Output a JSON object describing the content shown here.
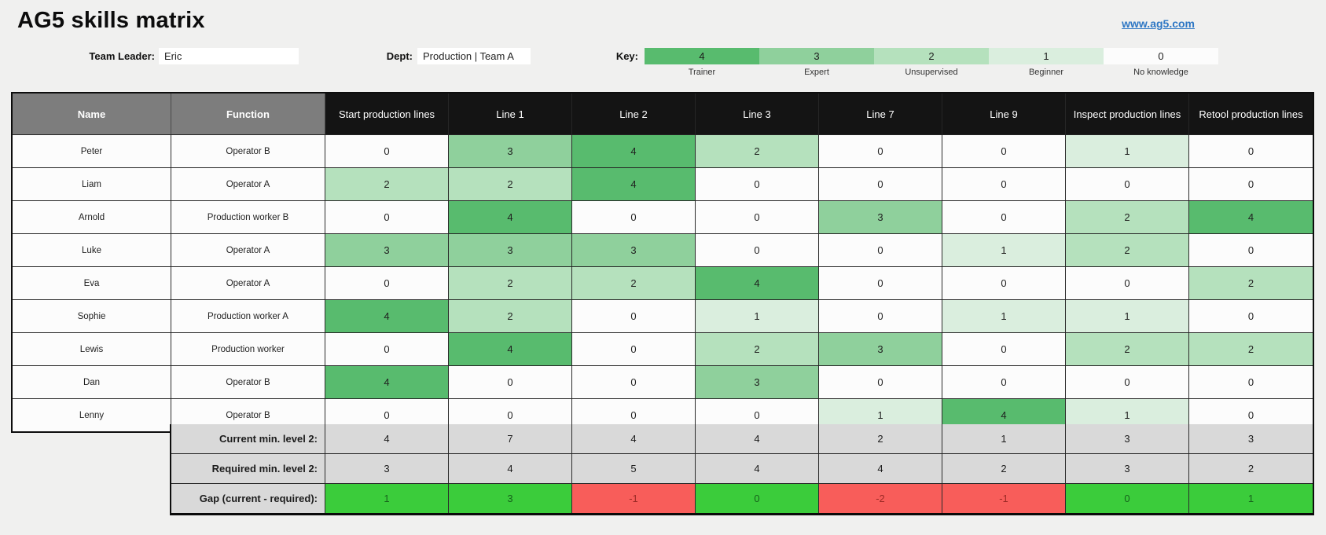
{
  "page": {
    "title": "AG5 skills matrix",
    "link": "www.ag5.com"
  },
  "form": {
    "team_leader_label": "Team Leader:",
    "team_leader_value": "Eric",
    "dept_label": "Dept:",
    "dept_value": "Production | Team A"
  },
  "key": {
    "label": "Key:",
    "levels": [
      {
        "value": "4",
        "name": "Trainer"
      },
      {
        "value": "3",
        "name": "Expert"
      },
      {
        "value": "2",
        "name": "Unsupervised"
      },
      {
        "value": "1",
        "name": "Beginner"
      },
      {
        "value": "0",
        "name": "No knowledge"
      }
    ]
  },
  "table": {
    "name_header": "Name",
    "function_header": "Function",
    "skill_headers": [
      "Start production lines",
      "Line 1",
      "Line 2",
      "Line 3",
      "Line 7",
      "Line 9",
      "Inspect production lines",
      "Retool production lines"
    ],
    "rows": [
      {
        "name": "Peter",
        "function": "Operator B",
        "values": [
          0,
          3,
          4,
          2,
          0,
          0,
          1,
          0
        ]
      },
      {
        "name": "Liam",
        "function": "Operator A",
        "values": [
          2,
          2,
          4,
          0,
          0,
          0,
          0,
          0
        ]
      },
      {
        "name": "Arnold",
        "function": "Production worker B",
        "values": [
          0,
          4,
          0,
          0,
          3,
          0,
          2,
          4
        ]
      },
      {
        "name": "Luke",
        "function": "Operator A",
        "values": [
          3,
          3,
          3,
          0,
          0,
          1,
          2,
          0
        ]
      },
      {
        "name": "Eva",
        "function": "Operator A",
        "values": [
          0,
          2,
          2,
          4,
          0,
          0,
          0,
          2
        ]
      },
      {
        "name": "Sophie",
        "function": "Production worker A",
        "values": [
          4,
          2,
          0,
          1,
          0,
          1,
          1,
          0
        ]
      },
      {
        "name": "Lewis",
        "function": "Production worker",
        "values": [
          0,
          4,
          0,
          2,
          3,
          0,
          2,
          2
        ]
      },
      {
        "name": "Dan",
        "function": "Operator B",
        "values": [
          4,
          0,
          0,
          3,
          0,
          0,
          0,
          0
        ]
      },
      {
        "name": "Lenny",
        "function": "Operator B",
        "values": [
          0,
          0,
          0,
          0,
          1,
          4,
          1,
          0
        ]
      }
    ],
    "summary": [
      {
        "label": "Current min. level 2:",
        "type": "plain",
        "values": [
          4,
          7,
          4,
          4,
          2,
          1,
          3,
          3
        ]
      },
      {
        "label": "Required min. level 2:",
        "type": "plain",
        "values": [
          3,
          4,
          5,
          4,
          4,
          2,
          3,
          2
        ]
      },
      {
        "label": "Gap (current - required):",
        "type": "gap",
        "values": [
          1,
          3,
          -1,
          0,
          -2,
          -1,
          0,
          1
        ]
      }
    ]
  },
  "colors": {
    "level_fills": {
      "0": "#fcfcfc",
      "1": "#daeede",
      "2": "#b5e1bd",
      "3": "#8fd09c",
      "4": "#58bb6e"
    },
    "gap_positive_fill": "#3bcc3b",
    "gap_positive_text": "#17641c",
    "gap_negative_fill": "#f85d5a",
    "gap_negative_text": "#9c2a26",
    "link_blue": "#2e77c4",
    "header_gray": "#7d7d7d",
    "header_dark": "#141414",
    "summary_gray": "#d9d9d9"
  }
}
